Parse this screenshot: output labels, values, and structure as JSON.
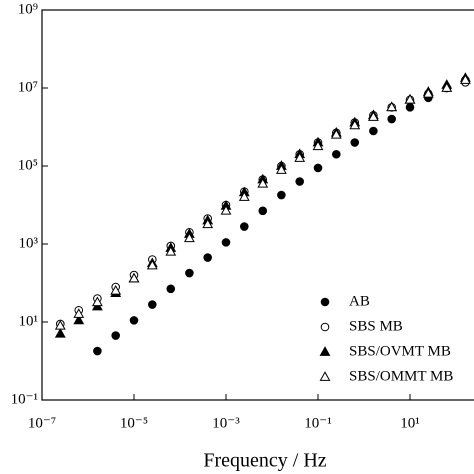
{
  "chart_data": {
    "type": "scatter",
    "x_label": "Frequency / Hz",
    "xscale": "log",
    "yscale": "log",
    "xlim": [
      1e-07,
      1000
    ],
    "ylim": [
      0.1,
      1000000000
    ],
    "xticks": [
      {
        "value": 1e-07,
        "label": "10⁻⁷"
      },
      {
        "value": 1e-05,
        "label": "10⁻⁵"
      },
      {
        "value": 0.001,
        "label": "10⁻³"
      },
      {
        "value": 0.1,
        "label": "10⁻¹"
      },
      {
        "value": 10,
        "label": "10¹"
      }
    ],
    "yticks": [
      {
        "value": 0.1,
        "label": "10⁻¹"
      },
      {
        "value": 10,
        "label": "10¹"
      },
      {
        "value": 1000,
        "label": "10³"
      },
      {
        "value": 100000,
        "label": "10⁵"
      },
      {
        "value": 10000000,
        "label": "10⁷"
      },
      {
        "value": 1000000000,
        "label": "10⁹"
      }
    ],
    "legend": "lower right",
    "series": [
      {
        "name": "AB",
        "color": "#000000",
        "marker": "circle",
        "filled": true,
        "x": [
          1.6e-06,
          4e-06,
          1e-05,
          2.5e-05,
          6.3e-05,
          0.00016,
          0.0004,
          0.001,
          0.0025,
          0.0063,
          0.016,
          0.04,
          0.1,
          0.25,
          0.63,
          1.6,
          4,
          10,
          25,
          63,
          160
        ],
        "values": [
          1.8,
          4.5,
          11,
          28,
          71,
          180,
          450,
          1100,
          2800,
          7100,
          18000,
          40000,
          89000,
          200000,
          400000,
          790000,
          1600000,
          3200000,
          5600000,
          10000000,
          16000000
        ]
      },
      {
        "name": "SBS MB",
        "color": "#000000",
        "marker": "circle",
        "filled": false,
        "x": [
          2.5e-07,
          6.3e-07,
          1.6e-06,
          4e-06,
          1e-05,
          2.5e-05,
          6.3e-05,
          0.00016,
          0.0004,
          0.001,
          0.0025,
          0.0063,
          0.016,
          0.04,
          0.1,
          0.25,
          0.63,
          1.6,
          4,
          10,
          25,
          63,
          160
        ],
        "values": [
          8.9,
          20,
          40,
          79,
          160,
          400,
          890,
          2000,
          4500,
          10000,
          22000,
          45000,
          100000,
          200000,
          400000,
          710000,
          1300000,
          2000000,
          3200000,
          5000000,
          7100000,
          10000000,
          14000000
        ]
      },
      {
        "name": "SBS/OVMT MB",
        "color": "#000000",
        "marker": "triangle",
        "filled": true,
        "x": [
          2.5e-07,
          6.3e-07,
          1.6e-06,
          4e-06,
          1e-05,
          2.5e-05,
          6.3e-05,
          0.00016,
          0.0004,
          0.001,
          0.0025,
          0.0063,
          0.016,
          0.04,
          0.1,
          0.25,
          0.63,
          1.6,
          4,
          10,
          25,
          63,
          160
        ],
        "values": [
          5,
          11,
          25,
          55,
          130,
          320,
          790,
          1800,
          4000,
          9500,
          21000,
          45000,
          100000,
          200000,
          400000,
          710000,
          1300000,
          2000000,
          3200000,
          5000000,
          7900000,
          12000000,
          18000000
        ]
      },
      {
        "name": "SBS/OMMT MB",
        "color": "#000000",
        "marker": "triangle",
        "filled": false,
        "x": [
          2.5e-07,
          6.3e-07,
          1.6e-06,
          4e-06,
          1e-05,
          2.5e-05,
          6.3e-05,
          0.00016,
          0.0004,
          0.001,
          0.0025,
          0.0063,
          0.016,
          0.04,
          0.1,
          0.25,
          0.63,
          1.6,
          4,
          10,
          25,
          63,
          160
        ],
        "values": [
          8,
          16,
          32,
          63,
          130,
          280,
          630,
          1400,
          3200,
          7100,
          16000,
          35000,
          79000,
          160000,
          320000,
          630000,
          1100000,
          1800000,
          3200000,
          5000000,
          7100000,
          10000000,
          16000000
        ]
      }
    ]
  }
}
